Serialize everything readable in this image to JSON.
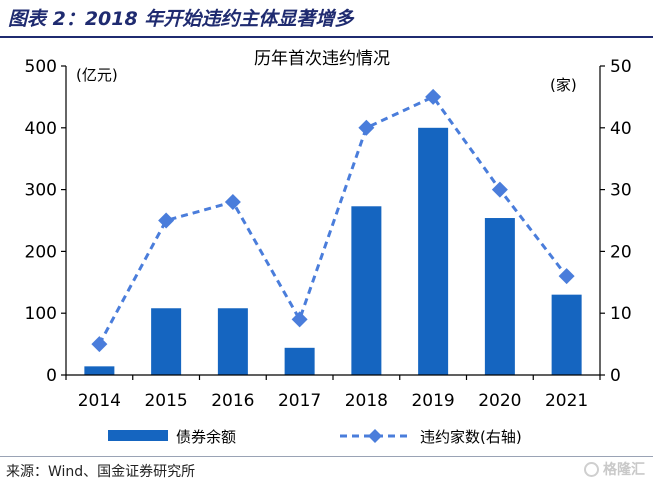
{
  "header": {
    "figure_title": "图表 2：2018 年开始违约主体显著增多"
  },
  "footer": {
    "source": "来源：Wind、国金证券研究所",
    "watermark": "格隆汇"
  },
  "colors": {
    "bar": "#1565c0",
    "line": "#4a7ddb",
    "header": "#1f2b70"
  },
  "chart_data": {
    "type": "bar",
    "title": "历年首次违约情况",
    "categories": [
      "2014",
      "2015",
      "2016",
      "2017",
      "2018",
      "2019",
      "2020",
      "2021"
    ],
    "left_axis": {
      "unit_label": "(亿元)",
      "ylim": [
        0,
        500
      ],
      "ticks": [
        "0",
        "100",
        "200",
        "300",
        "400",
        "500"
      ]
    },
    "right_axis": {
      "unit_label": "(家)",
      "ylim": [
        0,
        50
      ],
      "ticks": [
        "0",
        "10",
        "20",
        "30",
        "40",
        "50"
      ]
    },
    "series": [
      {
        "name": "债券余额",
        "type": "bar",
        "axis": "left",
        "values": [
          14,
          108,
          108,
          44,
          273,
          400,
          254,
          130
        ]
      },
      {
        "name": "违约家数(右轴)",
        "type": "line",
        "style": "dashed",
        "marker": "diamond",
        "axis": "right",
        "values": [
          5,
          25,
          28,
          9,
          40,
          45,
          30,
          16
        ]
      }
    ],
    "grid": false,
    "legend_position": "bottom"
  }
}
